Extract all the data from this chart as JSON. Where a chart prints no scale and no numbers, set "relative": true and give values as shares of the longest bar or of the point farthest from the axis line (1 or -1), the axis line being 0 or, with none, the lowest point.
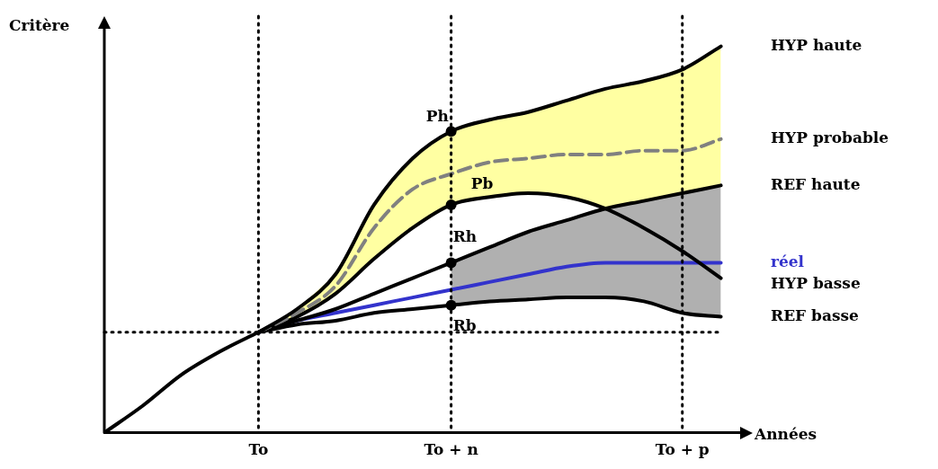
{
  "chart_data": {
    "type": "line",
    "relative": true,
    "xlabel": "Années",
    "ylabel": "Critère",
    "categories": [
      null,
      null,
      null,
      null,
      "To",
      null,
      null,
      null,
      null,
      "To + n",
      null,
      null,
      null,
      null,
      null,
      "To + p",
      null
    ],
    "series": [
      {
        "color": "#000000",
        "values": [
          0,
          0.07,
          0.15,
          0.21,
          0.26,
          null,
          null,
          null,
          null,
          null,
          null,
          null,
          null,
          null,
          null,
          null,
          null
        ]
      },
      {
        "name": "HYP haute",
        "color": "#000000",
        "values": [
          null,
          null,
          null,
          null,
          0.26,
          0.32,
          0.41,
          0.59,
          0.71,
          0.78,
          0.81,
          0.83,
          0.86,
          0.89,
          0.91,
          0.94,
          1
        ]
      },
      {
        "name": "HYP probable",
        "color": "#808080",
        "line_style": "dashed",
        "values": [
          null,
          null,
          null,
          null,
          0.26,
          0.31,
          0.38,
          0.53,
          0.63,
          0.67,
          0.7,
          0.71,
          0.72,
          0.72,
          0.73,
          0.73,
          0.76
        ],
        "lower": [
          null,
          null,
          null,
          null,
          0.26,
          0.3,
          0.36,
          0.45,
          0.53,
          0.59,
          0.61,
          0.62,
          0.61,
          0.58,
          0.6,
          0.62,
          0.64
        ],
        "upper": [
          null,
          null,
          null,
          null,
          0.26,
          0.32,
          0.41,
          0.59,
          0.71,
          0.78,
          0.81,
          0.83,
          0.86,
          0.89,
          0.91,
          0.94,
          1
        ]
      },
      {
        "name": "REF haute",
        "color": "#000000",
        "values": [
          null,
          null,
          null,
          null,
          0.26,
          0.29,
          0.32,
          0.36,
          0.4,
          0.44,
          0.48,
          0.52,
          0.55,
          0.58,
          0.6,
          0.62,
          0.64
        ]
      },
      {
        "name": "HYP basse",
        "color": "#000000",
        "values": [
          null,
          null,
          null,
          null,
          0.26,
          0.3,
          0.36,
          0.45,
          0.53,
          0.59,
          0.61,
          0.62,
          0.61,
          0.58,
          0.53,
          0.47,
          0.4
        ]
      },
      {
        "name": "REF basse",
        "color": "#000000",
        "values": [
          null,
          null,
          null,
          null,
          0.26,
          0.28,
          0.29,
          0.31,
          0.32,
          0.33,
          0.34,
          0.345,
          0.35,
          0.35,
          0.34,
          0.31,
          0.3
        ]
      },
      {
        "name": "réel",
        "color": "#3333cc",
        "values": [
          null,
          null,
          null,
          null,
          0.26,
          0.29,
          0.31,
          0.33,
          0.35,
          0.37,
          0.39,
          0.41,
          0.43,
          0.44,
          0.44,
          0.44,
          0.44
        ],
        "lower": [
          null,
          null,
          null,
          null,
          null,
          null,
          null,
          null,
          null,
          0.33,
          0.34,
          0.345,
          0.35,
          0.35,
          0.34,
          0.31,
          0.3
        ],
        "upper": [
          null,
          null,
          null,
          null,
          null,
          null,
          null,
          null,
          null,
          0.44,
          0.48,
          0.52,
          0.55,
          0.58,
          0.6,
          0.62,
          0.64
        ]
      }
    ],
    "ref_lines": [
      {
        "axis": "x",
        "value": "To",
        "line_style": "dotted"
      },
      {
        "axis": "x",
        "value": "To + n",
        "line_style": "dotted"
      },
      {
        "axis": "x",
        "value": "To + p",
        "line_style": "dotted"
      },
      {
        "axis": "y",
        "value": 0.26,
        "line_style": "dotted"
      }
    ],
    "annotations": [
      {
        "text": "Ph",
        "x": "To + n",
        "y": 0.78
      },
      {
        "text": "Pb",
        "x": "To + n",
        "y": 0.59
      },
      {
        "text": "Rh",
        "x": "To + n",
        "y": 0.44
      },
      {
        "text": "Rb",
        "x": "To + n",
        "y": 0.33
      }
    ],
    "grid": false,
    "legend": false,
    "marker": "none",
    "line_style": "solid"
  }
}
